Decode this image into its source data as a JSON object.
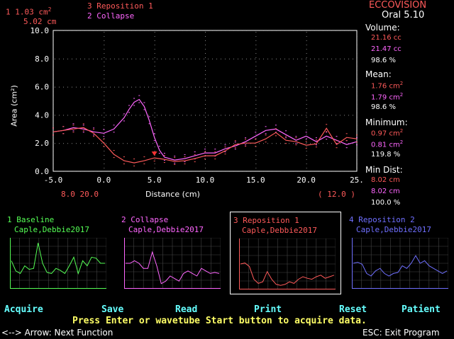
{
  "header": {
    "readout_area": "1  1.03 cm",
    "readout_area_unit_exp": "2",
    "readout_distance": "5.02 cm",
    "legend_3": "3 Reposition 1",
    "legend_2": "2 Collapse",
    "brand": "ECCOVISION",
    "version": "Oral 5.10"
  },
  "cursor_bottom": {
    "left_values": "8.0  20.0",
    "right_value": "( 12.0 )"
  },
  "stats": {
    "volume": {
      "label": "Volume:",
      "v1": "21.16 cc",
      "v2": "21.47 cc",
      "pct": "98.6  %"
    },
    "mean": {
      "label": "Mean:",
      "v1": "1.76  cm",
      "v2": "1.79  cm",
      "pct": "98.6  %",
      "exp": "2"
    },
    "minimum": {
      "label": "Minimum:",
      "v1": "0.97  cm",
      "v2": "0.81  cm",
      "pct": "119.8 %",
      "exp": "2"
    },
    "min_dist": {
      "label": "Min Dist:",
      "v1": "8.02  cm",
      "v2": "8.02  cm",
      "pct": "100.0 %"
    }
  },
  "chart_data": {
    "type": "line",
    "xlabel": "Distance (cm)",
    "ylabel": "Area (cm²)",
    "xlim": [
      -5,
      25
    ],
    "ylim": [
      0,
      10
    ],
    "x_ticks": [
      "-5.0",
      "0.0",
      "5.0",
      "10.0",
      "15.0",
      "20.0",
      "25."
    ],
    "y_ticks": [
      "0.0",
      "2.0",
      "4.0",
      "6.0",
      "8.0",
      "10.0"
    ],
    "colors": {
      "collapse": "#ff66ff",
      "reposition": "#ff5a5a",
      "marker": "#ff3333"
    },
    "marker_x": 5.0,
    "series": [
      {
        "name": "2 Collapse",
        "x": [
          -5,
          -4,
          -3,
          -2,
          -1,
          0,
          1,
          2,
          2.5,
          3,
          3.5,
          4,
          4.5,
          5,
          5.5,
          6,
          7,
          8,
          9,
          10,
          11,
          12,
          13,
          14,
          15,
          16,
          17,
          18,
          19,
          20,
          21,
          22,
          23,
          24,
          25
        ],
        "values": [
          2.8,
          2.9,
          3.1,
          3.0,
          2.8,
          2.7,
          3.0,
          3.8,
          4.4,
          4.9,
          5.1,
          4.6,
          3.6,
          2.4,
          1.5,
          1.0,
          0.8,
          0.9,
          1.1,
          1.3,
          1.3,
          1.6,
          1.8,
          2.1,
          2.5,
          2.9,
          3.0,
          2.6,
          2.2,
          2.5,
          2.1,
          2.5,
          2.2,
          1.9,
          2.1
        ]
      },
      {
        "name": "3 Reposition 1",
        "x": [
          -5,
          -4,
          -3,
          -2,
          -1,
          0,
          1,
          2,
          3,
          4,
          5,
          6,
          7,
          8,
          9,
          10,
          11,
          12,
          13,
          14,
          15,
          16,
          17,
          18,
          19,
          20,
          21,
          22,
          23,
          24,
          25
        ],
        "values": [
          2.8,
          2.9,
          3.0,
          3.1,
          2.7,
          2.0,
          1.2,
          0.75,
          0.6,
          0.75,
          0.95,
          0.85,
          0.7,
          0.75,
          0.9,
          1.1,
          1.1,
          1.45,
          1.9,
          2.0,
          2.0,
          2.3,
          2.75,
          2.2,
          2.1,
          1.85,
          1.95,
          3.05,
          1.9,
          2.4,
          2.3
        ]
      }
    ]
  },
  "panels": [
    {
      "title": "1 Baseline",
      "name": "Caple,Debbie2017",
      "color": "#55ff55",
      "values": [
        0.55,
        0.35,
        0.3,
        0.45,
        0.38,
        0.4,
        0.9,
        0.5,
        0.32,
        0.3,
        0.4,
        0.36,
        0.3,
        0.45,
        0.62,
        0.3,
        0.55,
        0.45,
        0.62,
        0.6,
        0.5,
        0.5
      ]
    },
    {
      "title": "2 Collapse",
      "name": "Caple,Debbie2017",
      "color": "#ff66ff",
      "values": [
        0.5,
        0.5,
        0.55,
        0.5,
        0.4,
        0.4,
        0.72,
        0.45,
        0.1,
        0.15,
        0.25,
        0.2,
        0.15,
        0.3,
        0.35,
        0.3,
        0.25,
        0.4,
        0.35,
        0.3,
        0.32,
        0.3
      ]
    },
    {
      "title": "3 Reposition 1",
      "name": "Caple,Debbie2017",
      "color": "#ff5a5a",
      "values": [
        0.5,
        0.52,
        0.45,
        0.2,
        0.12,
        0.15,
        0.35,
        0.2,
        0.1,
        0.08,
        0.1,
        0.15,
        0.12,
        0.2,
        0.25,
        0.22,
        0.2,
        0.25,
        0.28,
        0.22,
        0.25,
        0.28
      ]
    },
    {
      "title": "4 Reposition 2",
      "name": "Caple,Debbie2017",
      "color": "#6f6fff",
      "values": [
        0.5,
        0.52,
        0.48,
        0.3,
        0.25,
        0.35,
        0.4,
        0.3,
        0.25,
        0.3,
        0.32,
        0.45,
        0.4,
        0.5,
        0.65,
        0.5,
        0.55,
        0.45,
        0.4,
        0.35,
        0.3,
        0.35
      ]
    }
  ],
  "functions": {
    "acquire": "Acquire",
    "save": "Save",
    "read": "Read",
    "print": "Print",
    "reset": "Reset",
    "patient": "Patient"
  },
  "instruction": "Press Enter or wavetube Start button to acquire data.",
  "footer": {
    "arrow_hint": "<-->  Arrow:  Next Function",
    "esc_hint": "ESC:  Exit Program"
  }
}
